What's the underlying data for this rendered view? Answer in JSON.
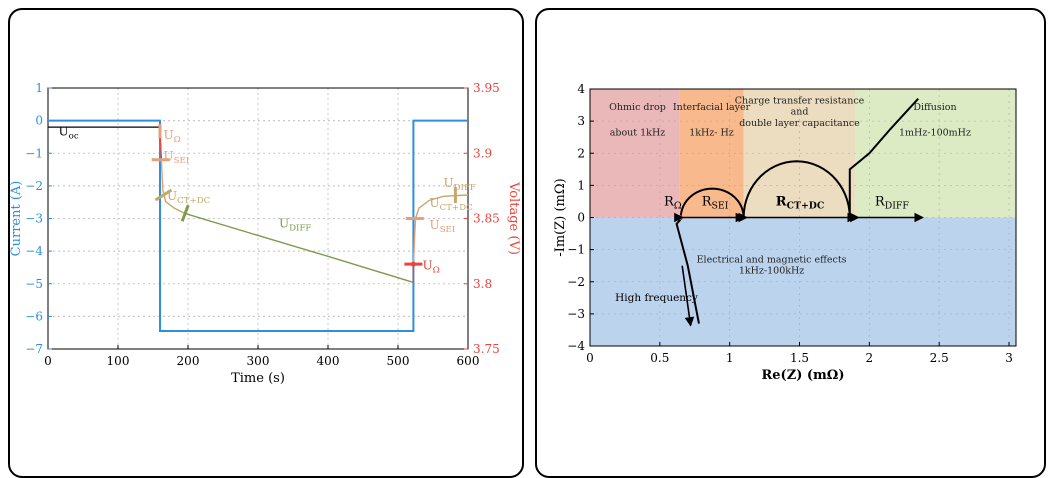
{
  "chart_data": [
    {
      "type": "line",
      "xlabel": "Time (s)",
      "ylabel_left": "Current (A)",
      "ylabel_right": "Voltage (V)",
      "xlim": [
        0,
        600
      ],
      "ylim_left": [
        -7,
        1
      ],
      "ylim_right": [
        3.75,
        3.95
      ],
      "x_ticks": [
        "0",
        "100",
        "200",
        "300",
        "400",
        "500",
        "600"
      ],
      "y_left_ticks": [
        "1",
        "0",
        "−1",
        "−2",
        "−3",
        "−4",
        "−5",
        "−6",
        "−7"
      ],
      "y_right_ticks": [
        "3.95",
        "3.9",
        "3.85",
        "3.8",
        "3.75"
      ],
      "grid": true,
      "colors": {
        "current": "#2f8fde",
        "voltage": "#e8453c",
        "ocv": "#000000",
        "diff": "#7d9b4f",
        "ct": "#c9a56a",
        "sei": "#e3a07a",
        "ohm": "#e8453c"
      },
      "series": [
        {
          "name": "current",
          "axis": "left",
          "points": [
            [
              0,
              0
            ],
            [
              160,
              0
            ],
            [
              160,
              -6.45
            ],
            [
              522,
              -6.45
            ],
            [
              522,
              0
            ],
            [
              600,
              0
            ]
          ]
        },
        {
          "name": "U_oc",
          "axis": "left",
          "points": [
            [
              0,
              -0.2
            ],
            [
              160,
              -0.2
            ]
          ]
        },
        {
          "name": "voltage",
          "axis": "right",
          "points": [
            [
              160,
              3.917
            ],
            [
              162,
              3.895
            ],
            [
              164,
              3.872
            ],
            [
              168,
              3.863
            ],
            [
              180,
              3.858
            ],
            [
              195,
              3.854
            ],
            [
              300,
              3.837
            ],
            [
              400,
              3.821
            ],
            [
              522,
              3.801
            ],
            [
              522,
              3.815
            ],
            [
              525,
              3.85
            ],
            [
              530,
              3.858
            ],
            [
              545,
              3.864
            ],
            [
              565,
              3.867
            ],
            [
              600,
              3.868
            ]
          ]
        }
      ],
      "annotations": [
        {
          "main": "U",
          "sub": "oc",
          "x": 15,
          "y": -0.45,
          "axis": "left",
          "color": "#000000"
        },
        {
          "main": "U",
          "sub": "Ω",
          "x": 165,
          "y": 3.911,
          "axis": "right",
          "color": "#e3a07a"
        },
        {
          "main": "U",
          "sub": "SEI",
          "x": 165,
          "y": 3.895,
          "axis": "right",
          "color": "#e3a07a"
        },
        {
          "main": "U",
          "sub": "CT+DC",
          "x": 170,
          "y": 3.864,
          "axis": "right",
          "color": "#c9a56a"
        },
        {
          "main": "U",
          "sub": "DIFF",
          "x": 330,
          "y": 3.843,
          "axis": "right",
          "color": "#7d9b4f"
        },
        {
          "main": "U",
          "sub": "DIFF",
          "x": 565,
          "y": 3.874,
          "axis": "right",
          "color": "#c9a56a"
        },
        {
          "main": "U",
          "sub": "CT+DC",
          "x": 545,
          "y": 3.859,
          "axis": "right",
          "color": "#c9a56a"
        },
        {
          "main": "U",
          "sub": "SEI",
          "x": 545,
          "y": 3.842,
          "axis": "right",
          "color": "#e3a07a"
        },
        {
          "main": "U",
          "sub": "Ω",
          "x": 535,
          "y": 3.811,
          "axis": "right",
          "color": "#e8453c"
        }
      ]
    },
    {
      "type": "line",
      "xlabel": "Re(Z) (mΩ)",
      "ylabel": "-Im(Z) (mΩ)",
      "xlim": [
        0,
        3.05
      ],
      "ylim": [
        -4,
        4
      ],
      "x_ticks": [
        "0",
        "0.5",
        "1",
        "1.5",
        "2",
        "2.5",
        "3"
      ],
      "y_ticks": [
        "4",
        "3",
        "2",
        "1",
        "0",
        "−1",
        "−2",
        "−3",
        "−4"
      ],
      "grid": true,
      "regions": [
        {
          "name": "ohmic",
          "x0": 0,
          "x1": 0.64,
          "y0": 0,
          "y1": 4,
          "color": "#eab8b8",
          "lines": [
            "Ohmic drop",
            "about 1kHz"
          ]
        },
        {
          "name": "sei",
          "x0": 0.64,
          "x1": 1.1,
          "y0": 0,
          "y1": 4,
          "color": "#f8b98c",
          "lines": [
            "Interfacial layer",
            "1kHz- Hz"
          ]
        },
        {
          "name": "ct",
          "x0": 1.1,
          "x1": 1.9,
          "y0": 0,
          "y1": 4,
          "color": "#ecdcc0",
          "lines": [
            "Charge transfer resistance",
            "and",
            "double layer capacitance"
          ]
        },
        {
          "name": "diffusion",
          "x0": 1.9,
          "x1": 3.05,
          "y0": 0,
          "y1": 4,
          "color": "#dcebc4",
          "lines": [
            "Diffusion",
            "1mHz-100mHz"
          ]
        },
        {
          "name": "inductive",
          "x0": 0,
          "x1": 3.05,
          "y0": -4,
          "y1": 0,
          "color": "#bcd3ee",
          "lines": [
            "Electrical and magnetic effects",
            "1kHz-100kHz"
          ]
        }
      ],
      "labels": [
        {
          "main": "R",
          "sub": "Ω",
          "x": 0.53,
          "y": 0.38
        },
        {
          "main": "R",
          "sub": "SEI",
          "x": 0.8,
          "y": 0.38
        },
        {
          "main": "R",
          "sub": "CT+DC",
          "x": 1.33,
          "y": 0.38,
          "bold": true
        },
        {
          "main": "R",
          "sub": "DIFF",
          "x": 2.04,
          "y": 0.38
        },
        {
          "text": "High frequency",
          "x": 0.18,
          "y": -2.6
        }
      ]
    }
  ]
}
